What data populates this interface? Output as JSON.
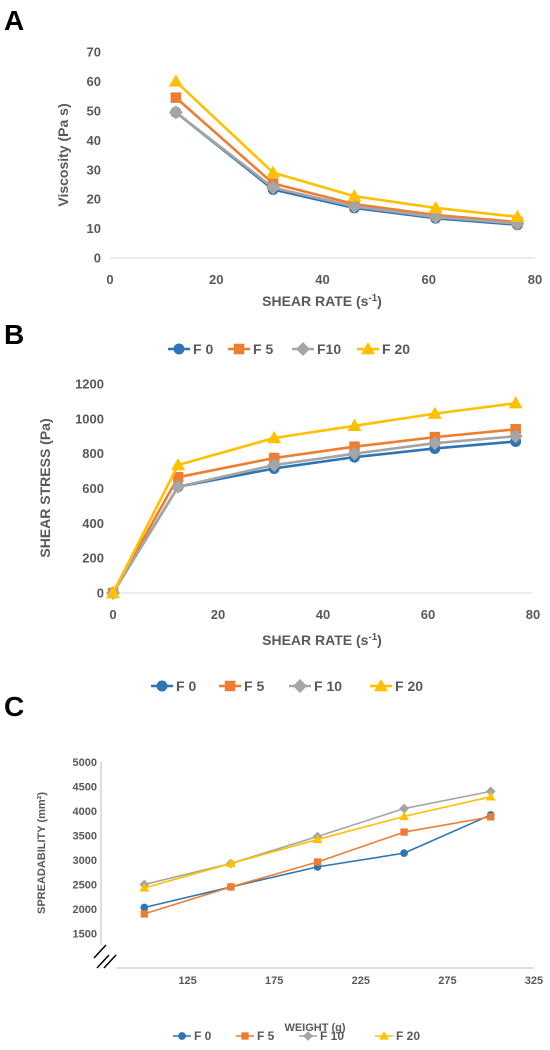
{
  "panels": [
    {
      "letter": "A",
      "type": "line",
      "xlabel_main": "SHEAR RATE (s",
      "xlabel_sup": "-1",
      "xlabel_end": ")",
      "ylabel": "Viscosity (Pa s)",
      "xlim": [
        0,
        80
      ],
      "ylim": [
        0,
        70
      ],
      "xticks": [
        "0",
        "20",
        "40",
        "60",
        "80"
      ],
      "yticks": [
        "0",
        "10",
        "20",
        "30",
        "40",
        "50",
        "60",
        "70"
      ],
      "x": [
        12.4,
        30.7,
        46,
        61.3,
        76.7
      ],
      "series": [
        {
          "name": "F 0",
          "color": "#2e75b6",
          "marker": "circle",
          "values": [
            49.5,
            23.3,
            17,
            13.5,
            11.3
          ]
        },
        {
          "name": "F 5",
          "color": "#ed7d31",
          "marker": "square",
          "values": [
            54.5,
            25.3,
            18.3,
            14.6,
            12.2
          ]
        },
        {
          "name": "F10",
          "color": "#a5a5a5",
          "marker": "diamond",
          "values": [
            49.5,
            23.9,
            17.5,
            13.9,
            11.7
          ]
        },
        {
          "name": "F 20",
          "color": "#ffc000",
          "marker": "triangle",
          "values": [
            60,
            29,
            21,
            17,
            14
          ]
        }
      ]
    },
    {
      "letter": "B",
      "type": "line",
      "xlabel_main": "SHEAR RATE (s",
      "xlabel_sup": "-1",
      "xlabel_end": ")",
      "ylabel": "SHEAR STRESS (Pa)",
      "xlim": [
        0,
        80
      ],
      "ylim": [
        0,
        1200
      ],
      "xticks": [
        "0",
        "20",
        "40",
        "60",
        "80"
      ],
      "yticks": [
        "0",
        "200",
        "400",
        "600",
        "800",
        "1000",
        "1200"
      ],
      "x": [
        0,
        12.4,
        30.7,
        46,
        61.3,
        76.7
      ],
      "series": [
        {
          "name": "F 0",
          "color": "#2e75b6",
          "marker": "circle",
          "values": [
            0,
            610,
            715,
            780,
            830,
            870
          ]
        },
        {
          "name": "F 5",
          "color": "#ed7d31",
          "marker": "square",
          "values": [
            0,
            665,
            775,
            840,
            895,
            940
          ]
        },
        {
          "name": "F 10",
          "color": "#a5a5a5",
          "marker": "diamond",
          "values": [
            0,
            610,
            735,
            800,
            860,
            900
          ]
        },
        {
          "name": "F 20",
          "color": "#ffc000",
          "marker": "triangle",
          "values": [
            0,
            735,
            890,
            960,
            1030,
            1090
          ]
        }
      ]
    },
    {
      "letter": "C",
      "type": "line",
      "xlabel_main": "WEIGHT (g)",
      "xlabel_sup": "",
      "xlabel_end": "",
      "ylabel": "SPREADABILITY (mm²)",
      "xlim": [
        75,
        325
      ],
      "ylim": [
        1000,
        5000
      ],
      "xticks": [
        "125",
        "175",
        "225",
        "275",
        "325"
      ],
      "yticks": [
        "1500",
        "2000",
        "2500",
        "3000",
        "3500",
        "4000",
        "4500",
        "5000"
      ],
      "x": [
        100,
        150,
        200,
        250,
        300
      ],
      "series": [
        {
          "name": "F 0",
          "color": "#2e75b6",
          "marker": "circle",
          "values": [
            2030,
            2450,
            2860,
            3140,
            3920
          ]
        },
        {
          "name": "F 5",
          "color": "#ed7d31",
          "marker": "square",
          "values": [
            1900,
            2450,
            2960,
            3570,
            3880
          ]
        },
        {
          "name": "F 10",
          "color": "#a5a5a5",
          "marker": "diamond",
          "values": [
            2500,
            2930,
            3480,
            4050,
            4400
          ]
        },
        {
          "name": "F 20",
          "color": "#ffc000",
          "marker": "triangle",
          "values": [
            2430,
            2930,
            3420,
            3890,
            4290
          ]
        }
      ]
    }
  ]
}
